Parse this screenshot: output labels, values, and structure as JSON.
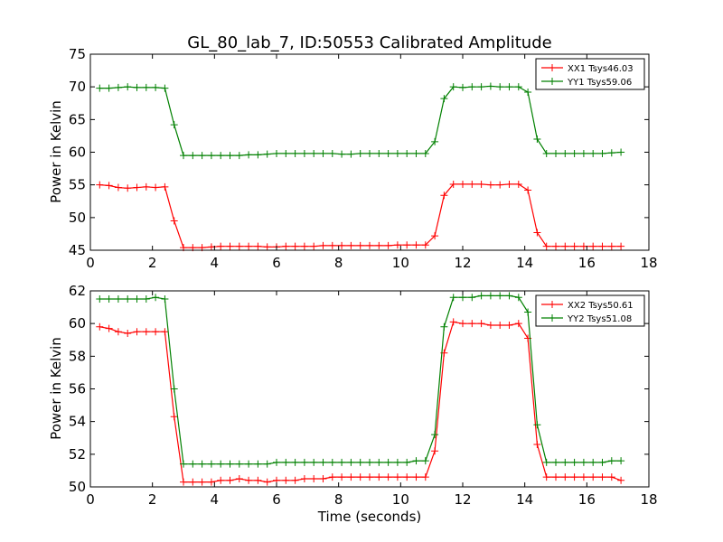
{
  "figure": {
    "title": "GL_80_lab_7, ID:50553 Calibrated Amplitude",
    "colors": {
      "red": "#ff0000",
      "green": "#008000",
      "axis": "#000000",
      "background": "#ffffff"
    }
  },
  "chart_data": [
    {
      "type": "line",
      "title": "GL_80_lab_7, ID:50553 Calibrated Amplitude",
      "xlabel": "",
      "ylabel": "Power in Kelvin",
      "xlim": [
        0,
        18
      ],
      "ylim": [
        45,
        75
      ],
      "xticks": [
        0,
        2,
        4,
        6,
        8,
        10,
        12,
        14,
        16,
        18
      ],
      "yticks": [
        45,
        50,
        55,
        60,
        65,
        70,
        75
      ],
      "grid": false,
      "legend": "top-right",
      "x": [
        0.3,
        0.6,
        0.9,
        1.2,
        1.5,
        1.8,
        2.1,
        2.4,
        2.7,
        3.0,
        3.3,
        3.6,
        3.9,
        4.2,
        4.5,
        4.8,
        5.1,
        5.4,
        5.7,
        6.0,
        6.3,
        6.6,
        6.9,
        7.2,
        7.5,
        7.8,
        8.1,
        8.4,
        8.7,
        9.0,
        9.3,
        9.6,
        9.9,
        10.2,
        10.5,
        10.8,
        11.1,
        11.4,
        11.7,
        12.0,
        12.3,
        12.6,
        12.9,
        13.2,
        13.5,
        13.8,
        14.1,
        14.4,
        14.7,
        15.0,
        15.3,
        15.6,
        15.9,
        16.2,
        16.5,
        16.8,
        17.1
      ],
      "series": [
        {
          "name": "XX1 Tsys46.03",
          "color": "#ff0000",
          "values": [
            55.0,
            54.9,
            54.6,
            54.5,
            54.6,
            54.7,
            54.6,
            54.7,
            49.5,
            45.4,
            45.4,
            45.4,
            45.5,
            45.6,
            45.6,
            45.6,
            45.6,
            45.6,
            45.5,
            45.5,
            45.6,
            45.6,
            45.6,
            45.6,
            45.7,
            45.7,
            45.7,
            45.7,
            45.7,
            45.7,
            45.7,
            45.7,
            45.8,
            45.8,
            45.8,
            45.8,
            47.2,
            53.4,
            55.1,
            55.1,
            55.1,
            55.1,
            55.0,
            55.0,
            55.1,
            55.1,
            54.2,
            47.7,
            45.6,
            45.6,
            45.6,
            45.6,
            45.6,
            45.6,
            45.6,
            45.6,
            45.6
          ]
        },
        {
          "name": "YY1 Tsys59.06",
          "color": "#008000",
          "values": [
            69.8,
            69.8,
            69.9,
            70.0,
            69.9,
            69.9,
            69.9,
            69.8,
            64.2,
            59.5,
            59.5,
            59.5,
            59.5,
            59.5,
            59.5,
            59.5,
            59.6,
            59.6,
            59.7,
            59.8,
            59.8,
            59.8,
            59.8,
            59.8,
            59.8,
            59.8,
            59.7,
            59.7,
            59.8,
            59.8,
            59.8,
            59.8,
            59.8,
            59.8,
            59.8,
            59.8,
            61.6,
            68.2,
            70.0,
            69.9,
            70.0,
            70.0,
            70.1,
            70.0,
            70.0,
            70.0,
            69.2,
            62.0,
            59.8,
            59.8,
            59.8,
            59.8,
            59.8,
            59.8,
            59.8,
            59.9,
            60.0
          ]
        }
      ]
    },
    {
      "type": "line",
      "title": "",
      "xlabel": "Time (seconds)",
      "ylabel": "Power in Kelvin",
      "xlim": [
        0,
        18
      ],
      "ylim": [
        50,
        62
      ],
      "xticks": [
        0,
        2,
        4,
        6,
        8,
        10,
        12,
        14,
        16,
        18
      ],
      "yticks": [
        50,
        52,
        54,
        56,
        58,
        60,
        62
      ],
      "grid": false,
      "legend": "top-right",
      "x": [
        0.3,
        0.6,
        0.9,
        1.2,
        1.5,
        1.8,
        2.1,
        2.4,
        2.7,
        3.0,
        3.3,
        3.6,
        3.9,
        4.2,
        4.5,
        4.8,
        5.1,
        5.4,
        5.7,
        6.0,
        6.3,
        6.6,
        6.9,
        7.2,
        7.5,
        7.8,
        8.1,
        8.4,
        8.7,
        9.0,
        9.3,
        9.6,
        9.9,
        10.2,
        10.5,
        10.8,
        11.1,
        11.4,
        11.7,
        12.0,
        12.3,
        12.6,
        12.9,
        13.2,
        13.5,
        13.8,
        14.1,
        14.4,
        14.7,
        15.0,
        15.3,
        15.6,
        15.9,
        16.2,
        16.5,
        16.8,
        17.1
      ],
      "series": [
        {
          "name": "XX2 Tsys50.61",
          "color": "#ff0000",
          "values": [
            59.8,
            59.7,
            59.5,
            59.4,
            59.5,
            59.5,
            59.5,
            59.5,
            54.3,
            50.3,
            50.3,
            50.3,
            50.3,
            50.4,
            50.4,
            50.5,
            50.4,
            50.4,
            50.3,
            50.4,
            50.4,
            50.4,
            50.5,
            50.5,
            50.5,
            50.6,
            50.6,
            50.6,
            50.6,
            50.6,
            50.6,
            50.6,
            50.6,
            50.6,
            50.6,
            50.6,
            52.2,
            58.2,
            60.1,
            60.0,
            60.0,
            60.0,
            59.9,
            59.9,
            59.9,
            60.0,
            59.1,
            52.6,
            50.6,
            50.6,
            50.6,
            50.6,
            50.6,
            50.6,
            50.6,
            50.6,
            50.4
          ]
        },
        {
          "name": "YY2 Tsys51.08",
          "color": "#008000",
          "values": [
            61.5,
            61.5,
            61.5,
            61.5,
            61.5,
            61.5,
            61.6,
            61.5,
            56.0,
            51.4,
            51.4,
            51.4,
            51.4,
            51.4,
            51.4,
            51.4,
            51.4,
            51.4,
            51.4,
            51.5,
            51.5,
            51.5,
            51.5,
            51.5,
            51.5,
            51.5,
            51.5,
            51.5,
            51.5,
            51.5,
            51.5,
            51.5,
            51.5,
            51.5,
            51.6,
            51.6,
            53.2,
            59.8,
            61.6,
            61.6,
            61.6,
            61.7,
            61.7,
            61.7,
            61.7,
            61.6,
            60.7,
            53.8,
            51.5,
            51.5,
            51.5,
            51.5,
            51.5,
            51.5,
            51.5,
            51.6,
            51.6
          ]
        }
      ]
    }
  ]
}
